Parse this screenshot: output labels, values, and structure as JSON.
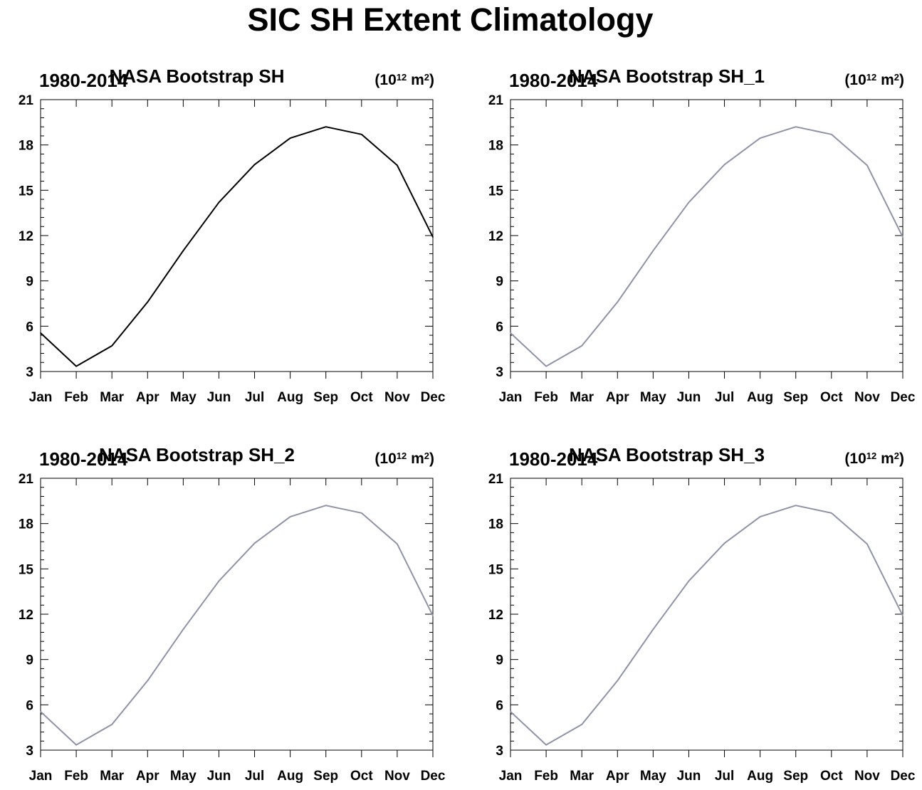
{
  "figure": {
    "title": "SIC SH Extent Climatology"
  },
  "chart_data": [
    {
      "type": "line",
      "left_title": "1980-2014",
      "center_title": "NASA Bootstrap SH",
      "units": {
        "base": "(10",
        "exp": "12",
        "mid": " m",
        "exp2": "2",
        "end": ")"
      },
      "categories": [
        "Jan",
        "Feb",
        "Mar",
        "Apr",
        "May",
        "Jun",
        "Jul",
        "Aug",
        "Sep",
        "Oct",
        "Nov",
        "Dec"
      ],
      "series": [
        {
          "values": [
            5.55,
            3.35,
            4.7,
            7.6,
            11.0,
            14.2,
            16.7,
            18.45,
            19.2,
            18.7,
            16.65,
            11.9
          ],
          "color": "#000000"
        }
      ],
      "ylim": [
        3,
        21
      ],
      "yticks": [
        "3",
        "6",
        "9",
        "12",
        "15",
        "18",
        "21"
      ],
      "grid": false
    },
    {
      "type": "line",
      "left_title": "1980-2014",
      "center_title": "NASA Bootstrap SH_1",
      "units": {
        "base": "(10",
        "exp": "12",
        "mid": " m",
        "exp2": "2",
        "end": ")"
      },
      "categories": [
        "Jan",
        "Feb",
        "Mar",
        "Apr",
        "May",
        "Jun",
        "Jul",
        "Aug",
        "Sep",
        "Oct",
        "Nov",
        "Dec"
      ],
      "series": [
        {
          "values": [
            5.55,
            3.35,
            4.7,
            7.6,
            11.0,
            14.2,
            16.7,
            18.45,
            19.2,
            18.7,
            16.65,
            11.9
          ],
          "color": "#8f93a7"
        }
      ],
      "ylim": [
        3,
        21
      ],
      "yticks": [
        "3",
        "6",
        "9",
        "12",
        "15",
        "18",
        "21"
      ],
      "grid": false
    },
    {
      "type": "line",
      "left_title": "1980-2014",
      "center_title": "NASA Bootstrap SH_2",
      "units": {
        "base": "(10",
        "exp": "12",
        "mid": " m",
        "exp2": "2",
        "end": ")"
      },
      "categories": [
        "Jan",
        "Feb",
        "Mar",
        "Apr",
        "May",
        "Jun",
        "Jul",
        "Aug",
        "Sep",
        "Oct",
        "Nov",
        "Dec"
      ],
      "series": [
        {
          "values": [
            5.55,
            3.35,
            4.7,
            7.6,
            11.0,
            14.2,
            16.7,
            18.45,
            19.2,
            18.7,
            16.65,
            11.9
          ],
          "color": "#8f93a7"
        }
      ],
      "ylim": [
        3,
        21
      ],
      "yticks": [
        "3",
        "6",
        "9",
        "12",
        "15",
        "18",
        "21"
      ],
      "grid": false
    },
    {
      "type": "line",
      "left_title": "1980-2014",
      "center_title": "NASA Bootstrap SH_3",
      "units": {
        "base": "(10",
        "exp": "12",
        "mid": " m",
        "exp2": "2",
        "end": ")"
      },
      "categories": [
        "Jan",
        "Feb",
        "Mar",
        "Apr",
        "May",
        "Jun",
        "Jul",
        "Aug",
        "Sep",
        "Oct",
        "Nov",
        "Dec"
      ],
      "series": [
        {
          "values": [
            5.55,
            3.35,
            4.7,
            7.6,
            11.0,
            14.2,
            16.7,
            18.45,
            19.2,
            18.7,
            16.65,
            11.9
          ],
          "color": "#8f93a7"
        }
      ],
      "ylim": [
        3,
        21
      ],
      "yticks": [
        "3",
        "6",
        "9",
        "12",
        "15",
        "18",
        "21"
      ],
      "grid": false
    }
  ]
}
